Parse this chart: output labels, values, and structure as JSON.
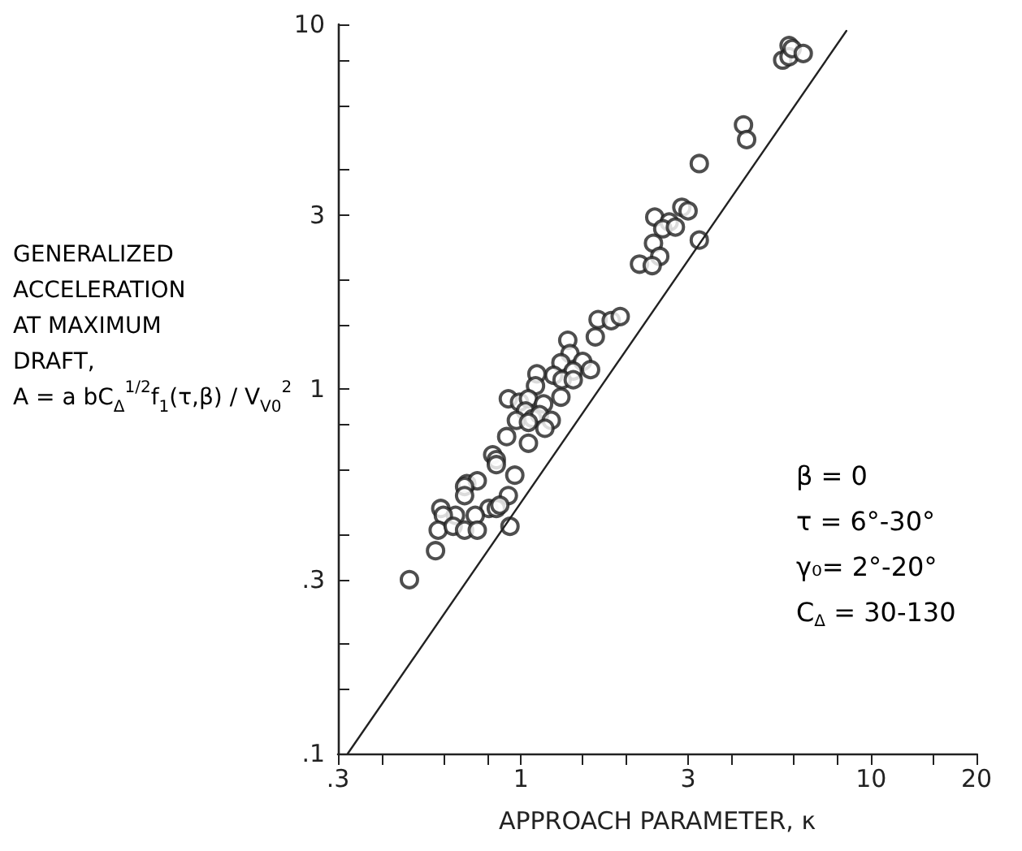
{
  "chart_data": {
    "type": "scatter",
    "xlabel": "APPROACH PARAMETER, κ",
    "ylabel": "GENERALIZED\nACCELERATION\nAT MAXIMUM\nDRAFT,\nA = a bC$_{Δ}$$^{1/2}$f$_{1}$(τ,β) / V$_{V0}$$^{2}$",
    "annotations": [
      "β = 0",
      "τ = 6°-30°",
      "γ₀= 2°-20°",
      "C$_{Δ}$ = 30-130"
    ],
    "log": "xy",
    "grid": false,
    "xlim": [
      0.3,
      20
    ],
    "ylim": [
      0.1,
      10
    ],
    "xticks": [
      {
        "value": 0.3,
        "label": ".3"
      },
      {
        "value": 0.4,
        "label": null
      },
      {
        "value": 0.6,
        "label": null
      },
      {
        "value": 0.8,
        "label": null
      },
      1,
      {
        "value": 1.5,
        "label": null
      },
      {
        "value": 2,
        "label": null
      },
      3,
      {
        "value": 4,
        "label": null
      },
      {
        "value": 6,
        "label": null
      },
      {
        "value": 8,
        "label": null
      },
      10,
      {
        "value": 15,
        "label": null
      },
      20
    ],
    "yticks": [
      {
        "value": 0.1,
        "label": ".1"
      },
      {
        "value": 0.15,
        "label": null
      },
      {
        "value": 0.2,
        "label": null
      },
      {
        "value": 0.3,
        "label": ".3"
      },
      {
        "value": 0.4,
        "label": null
      },
      {
        "value": 0.6,
        "label": null
      },
      {
        "value": 0.8,
        "label": null
      },
      1,
      {
        "value": 1.5,
        "label": null
      },
      {
        "value": 2,
        "label": null
      },
      3,
      {
        "value": 4,
        "label": null
      },
      {
        "value": 6,
        "label": null
      },
      {
        "value": 8,
        "label": null
      },
      10
    ],
    "series": [
      {
        "color": "#222222",
        "marker": "circle",
        "x": [
          5.83,
          5.59,
          5.83,
          5.95,
          6.4,
          4.32,
          4.41,
          3.23,
          3.23,
          2.88,
          3.0,
          2.41,
          2.65,
          2.54,
          2.76,
          2.39,
          2.49,
          2.18,
          2.37,
          1.66,
          1.81,
          1.92,
          1.63,
          1.36,
          1.38,
          1.5,
          1.3,
          1.41,
          1.58,
          1.24,
          1.31,
          1.41,
          1.11,
          1.1,
          1.3,
          0.92,
          0.99,
          1.05,
          1.16,
          1.03,
          0.97,
          1.08,
          1.13,
          1.22,
          1.17,
          1.05,
          0.91,
          1.05,
          0.83,
          0.85,
          0.85,
          0.96,
          0.7,
          0.75,
          0.69,
          0.69,
          0.92,
          0.81,
          0.85,
          0.87,
          0.74,
          0.59,
          0.65,
          0.6,
          0.58,
          0.64,
          0.69,
          0.75,
          0.93,
          0.57,
          0.48
        ],
        "values": [
          8.75,
          7.98,
          8.15,
          8.58,
          8.32,
          5.3,
          4.83,
          4.15,
          2.56,
          3.15,
          3.08,
          2.96,
          2.87,
          2.75,
          2.78,
          2.51,
          2.31,
          2.2,
          2.18,
          1.55,
          1.54,
          1.58,
          1.39,
          1.36,
          1.25,
          1.19,
          1.18,
          1.12,
          1.13,
          1.09,
          1.06,
          1.06,
          1.1,
          1.02,
          0.95,
          0.94,
          0.92,
          0.94,
          0.91,
          0.87,
          0.82,
          0.83,
          0.85,
          0.82,
          0.78,
          0.81,
          0.74,
          0.71,
          0.66,
          0.64,
          0.62,
          0.58,
          0.55,
          0.56,
          0.54,
          0.51,
          0.51,
          0.47,
          0.47,
          0.48,
          0.45,
          0.47,
          0.45,
          0.45,
          0.41,
          0.42,
          0.41,
          0.41,
          0.42,
          0.36,
          0.3
        ]
      },
      {
        "type": "line",
        "color": "#222222",
        "marker": "none",
        "line_style": "solid",
        "x": [
          0.32,
          8.5
        ],
        "values": [
          0.1,
          9.6
        ]
      }
    ]
  }
}
